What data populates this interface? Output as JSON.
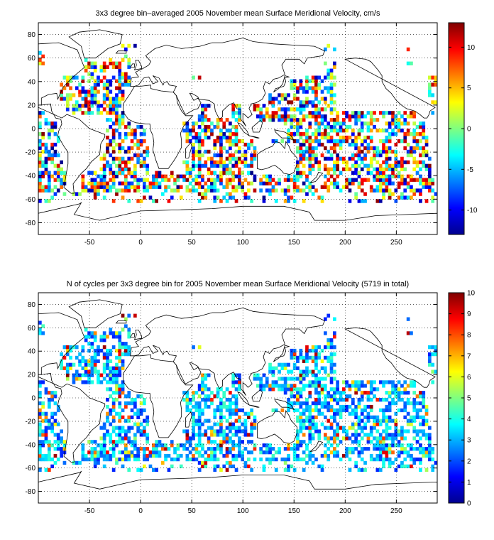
{
  "chart_data": [
    {
      "type": "heatmap",
      "title": "3x3 degree bin–averaged 2005 November mean Surface Meridional Velocity, cm/s",
      "xlabel": "",
      "ylabel": "",
      "xlim": [
        -100,
        290
      ],
      "ylim": [
        -90,
        90
      ],
      "xticks": [
        -50,
        0,
        50,
        100,
        150,
        200,
        250
      ],
      "yticks": [
        -80,
        -60,
        -40,
        -20,
        0,
        20,
        40,
        60,
        80
      ],
      "bin_size_deg": 3,
      "grid": true,
      "colormap": "jet",
      "clim": [
        -13,
        13
      ],
      "colorbar_ticks": [
        -10,
        -5,
        0,
        5,
        10
      ],
      "colorbar_placement": "right",
      "values_description_units": "cm/s"
    },
    {
      "type": "heatmap",
      "title": "N of cycles per 3x3 degree bin for 2005 November mean Surface Meridional Velocity (5719 in total)",
      "xlabel": "",
      "ylabel": "",
      "xlim": [
        -100,
        290
      ],
      "ylim": [
        -90,
        90
      ],
      "xticks": [
        -50,
        0,
        50,
        100,
        150,
        200,
        250
      ],
      "yticks": [
        -80,
        -60,
        -40,
        -20,
        0,
        20,
        40,
        60,
        80
      ],
      "bin_size_deg": 3,
      "grid": true,
      "colormap": "jet",
      "clim": [
        0,
        10
      ],
      "colorbar_ticks": [
        0,
        1,
        2,
        3,
        4,
        5,
        6,
        7,
        8,
        9,
        10
      ],
      "colorbar_placement": "right",
      "total": 5719
    }
  ]
}
